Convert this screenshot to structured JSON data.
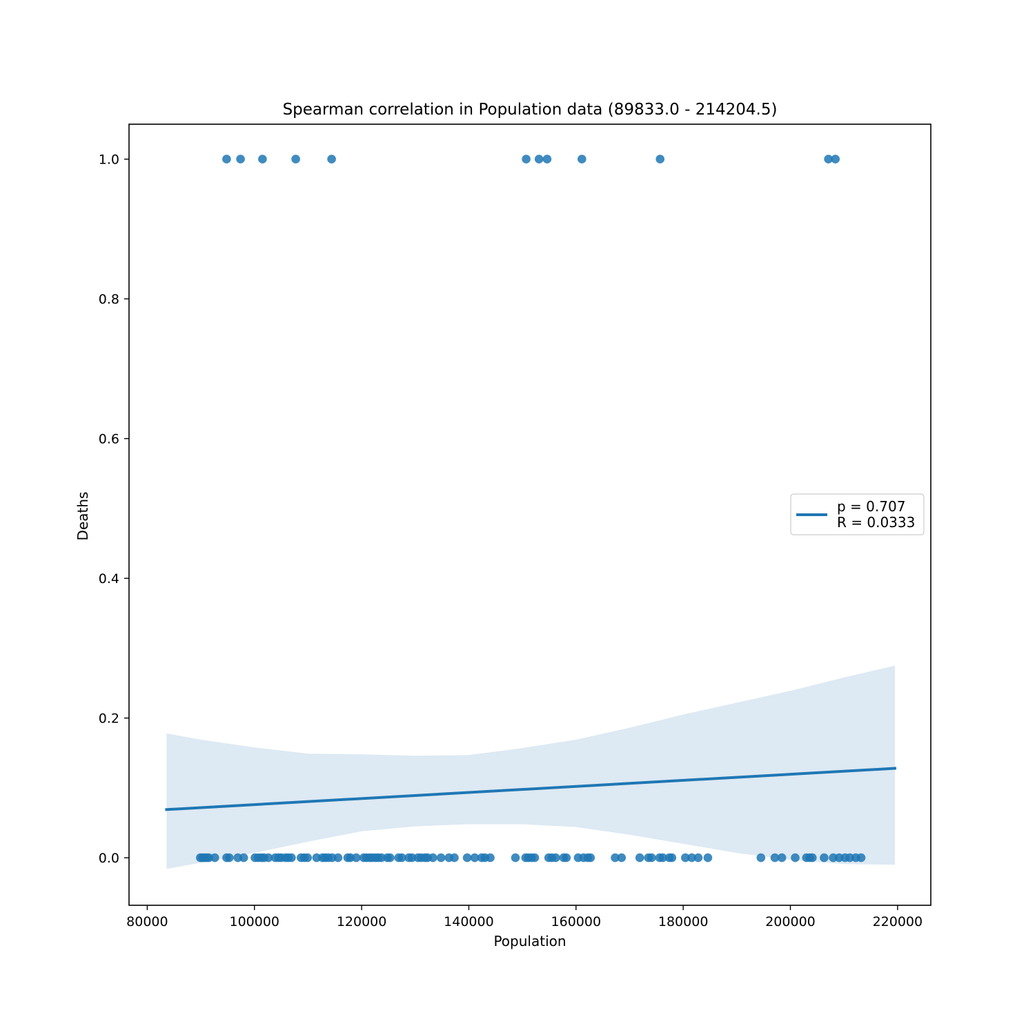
{
  "chart_data": {
    "type": "scatter",
    "title": "Spearman correlation in Population data (89833.0 - 214204.5)",
    "xlabel": "Population",
    "ylabel": "Deaths",
    "xlim": [
      76600,
      226200
    ],
    "ylim": [
      -0.068,
      1.05
    ],
    "x_ticks": [
      80000,
      100000,
      120000,
      140000,
      160000,
      180000,
      200000,
      220000
    ],
    "y_ticks": [
      0.0,
      0.2,
      0.4,
      0.6,
      0.8,
      1.0
    ],
    "x_tick_labels": [
      "80000",
      "100000",
      "120000",
      "140000",
      "160000",
      "180000",
      "200000",
      "220000"
    ],
    "y_tick_labels": [
      "0.0",
      "0.2",
      "0.4",
      "0.6",
      "0.8",
      "1.0"
    ],
    "grid": false,
    "legend_position": "center-right",
    "legend_entries": [
      "p = 0.707",
      "R = 0.0333"
    ],
    "colors": {
      "points": "#1f77b4",
      "regression_line": "#1f77b4",
      "confidence_band": "#dde9f3"
    },
    "series": [
      {
        "kind": "scatter",
        "points": [
          [
            94800,
            1
          ],
          [
            97400,
            1
          ],
          [
            101500,
            1
          ],
          [
            107700,
            1
          ],
          [
            114400,
            1
          ],
          [
            150700,
            1
          ],
          [
            153100,
            1
          ],
          [
            154600,
            1
          ],
          [
            161100,
            1
          ],
          [
            175700,
            1
          ],
          [
            207100,
            1
          ],
          [
            208400,
            1
          ],
          [
            89900,
            0
          ],
          [
            90300,
            0
          ],
          [
            90700,
            0
          ],
          [
            91100,
            0
          ],
          [
            91500,
            0
          ],
          [
            92600,
            0
          ],
          [
            94800,
            0
          ],
          [
            95300,
            0
          ],
          [
            96900,
            0
          ],
          [
            98000,
            0
          ],
          [
            100100,
            0
          ],
          [
            100700,
            0
          ],
          [
            101300,
            0
          ],
          [
            101800,
            0
          ],
          [
            102600,
            0
          ],
          [
            103900,
            0
          ],
          [
            104500,
            0
          ],
          [
            105000,
            0
          ],
          [
            105800,
            0
          ],
          [
            106300,
            0
          ],
          [
            106900,
            0
          ],
          [
            108700,
            0
          ],
          [
            109300,
            0
          ],
          [
            109900,
            0
          ],
          [
            111600,
            0
          ],
          [
            112700,
            0
          ],
          [
            113200,
            0
          ],
          [
            113800,
            0
          ],
          [
            114500,
            0
          ],
          [
            115600,
            0
          ],
          [
            117400,
            0
          ],
          [
            117900,
            0
          ],
          [
            119000,
            0
          ],
          [
            120400,
            0
          ],
          [
            120900,
            0
          ],
          [
            121500,
            0
          ],
          [
            122000,
            0
          ],
          [
            122600,
            0
          ],
          [
            123100,
            0
          ],
          [
            123700,
            0
          ],
          [
            124800,
            0
          ],
          [
            125300,
            0
          ],
          [
            126900,
            0
          ],
          [
            127500,
            0
          ],
          [
            128800,
            0
          ],
          [
            129400,
            0
          ],
          [
            130500,
            0
          ],
          [
            131100,
            0
          ],
          [
            131800,
            0
          ],
          [
            132300,
            0
          ],
          [
            133300,
            0
          ],
          [
            134800,
            0
          ],
          [
            136300,
            0
          ],
          [
            137300,
            0
          ],
          [
            139700,
            0
          ],
          [
            141100,
            0
          ],
          [
            142400,
            0
          ],
          [
            143000,
            0
          ],
          [
            144000,
            0
          ],
          [
            148700,
            0
          ],
          [
            150600,
            0
          ],
          [
            151100,
            0
          ],
          [
            151700,
            0
          ],
          [
            152300,
            0
          ],
          [
            154900,
            0
          ],
          [
            155500,
            0
          ],
          [
            156200,
            0
          ],
          [
            157700,
            0
          ],
          [
            158200,
            0
          ],
          [
            160400,
            0
          ],
          [
            161400,
            0
          ],
          [
            162200,
            0
          ],
          [
            162700,
            0
          ],
          [
            167300,
            0
          ],
          [
            168500,
            0
          ],
          [
            171900,
            0
          ],
          [
            173500,
            0
          ],
          [
            174100,
            0
          ],
          [
            175600,
            0
          ],
          [
            176200,
            0
          ],
          [
            177400,
            0
          ],
          [
            177900,
            0
          ],
          [
            180400,
            0
          ],
          [
            181600,
            0
          ],
          [
            182800,
            0
          ],
          [
            184600,
            0
          ],
          [
            194500,
            0
          ],
          [
            197100,
            0
          ],
          [
            198400,
            0
          ],
          [
            200900,
            0
          ],
          [
            203000,
            0
          ],
          [
            203600,
            0
          ],
          [
            204100,
            0
          ],
          [
            206300,
            0
          ],
          [
            208000,
            0
          ],
          [
            209100,
            0
          ],
          [
            210200,
            0
          ],
          [
            211100,
            0
          ],
          [
            212200,
            0
          ],
          [
            213200,
            0
          ]
        ]
      },
      {
        "kind": "regression",
        "line": [
          [
            83600,
            0.069
          ],
          [
            219500,
            0.128
          ]
        ],
        "band_upper": [
          [
            83600,
            0.178
          ],
          [
            90000,
            0.169
          ],
          [
            100000,
            0.158
          ],
          [
            110000,
            0.149
          ],
          [
            120000,
            0.148
          ],
          [
            130000,
            0.146
          ],
          [
            140000,
            0.147
          ],
          [
            150000,
            0.157
          ],
          [
            160000,
            0.169
          ],
          [
            170000,
            0.186
          ],
          [
            180000,
            0.205
          ],
          [
            190000,
            0.222
          ],
          [
            200000,
            0.239
          ],
          [
            210000,
            0.258
          ],
          [
            219500,
            0.275
          ]
        ],
        "band_lower": [
          [
            83600,
            -0.016
          ],
          [
            90000,
            -0.007
          ],
          [
            100000,
            0.007
          ],
          [
            110000,
            0.023
          ],
          [
            120000,
            0.038
          ],
          [
            130000,
            0.045
          ],
          [
            140000,
            0.048
          ],
          [
            150000,
            0.048
          ],
          [
            160000,
            0.044
          ],
          [
            170000,
            0.033
          ],
          [
            180000,
            0.02
          ],
          [
            190000,
            0.007
          ],
          [
            200000,
            -0.003
          ],
          [
            210000,
            -0.009
          ],
          [
            219500,
            -0.01
          ]
        ]
      }
    ]
  }
}
